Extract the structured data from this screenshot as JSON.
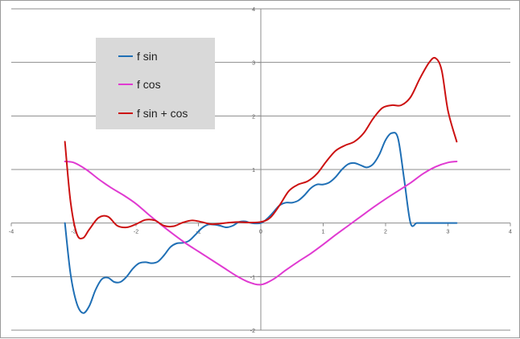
{
  "chart_data": {
    "type": "line",
    "title": "",
    "xlabel": "",
    "ylabel": "",
    "xlim": [
      -4,
      4
    ],
    "ylim": [
      -2,
      4
    ],
    "x_ticks": [
      -4,
      -3,
      -2,
      -1,
      0,
      1,
      2,
      3,
      4
    ],
    "y_ticks": [
      -2,
      -1,
      0,
      1,
      2,
      3,
      4
    ],
    "x_tick_labels": [
      "-4",
      "-3",
      "-2",
      "-1",
      "0",
      "1",
      "2",
      "3",
      "4"
    ],
    "y_tick_labels": [
      "-2",
      "-1",
      "",
      "1",
      "2",
      "3",
      "4"
    ],
    "grid": "horizontal",
    "legend_position": "top-left",
    "series": [
      {
        "name": "f sin",
        "color": "#1f6fb5",
        "x": [
          -3.14,
          -3.05,
          -2.95,
          -2.85,
          -2.75,
          -2.65,
          -2.55,
          -2.45,
          -2.35,
          -2.25,
          -2.15,
          -2.05,
          -1.95,
          -1.85,
          -1.75,
          -1.65,
          -1.55,
          -1.45,
          -1.35,
          -1.25,
          -1.15,
          -1.05,
          -0.95,
          -0.85,
          -0.75,
          -0.65,
          -0.55,
          -0.45,
          -0.35,
          -0.25,
          -0.15,
          0,
          0.1,
          0.2,
          0.3,
          0.4,
          0.5,
          0.6,
          0.7,
          0.8,
          0.9,
          1.0,
          1.1,
          1.2,
          1.3,
          1.4,
          1.5,
          1.6,
          1.7,
          1.8,
          1.9,
          2.0,
          2.1,
          2.2,
          2.3,
          2.4,
          2.5,
          2.6,
          2.7,
          2.8,
          2.9,
          3.0,
          3.14
        ],
        "y": [
          0,
          -0.95,
          -1.5,
          -1.68,
          -1.55,
          -1.25,
          -1.05,
          -1.02,
          -1.1,
          -1.1,
          -1.0,
          -0.85,
          -0.75,
          -0.73,
          -0.75,
          -0.72,
          -0.6,
          -0.45,
          -0.38,
          -0.37,
          -0.33,
          -0.22,
          -0.1,
          -0.03,
          -0.03,
          -0.05,
          -0.08,
          -0.05,
          0.02,
          0.03,
          0.0,
          0,
          0.08,
          0.2,
          0.33,
          0.38,
          0.38,
          0.42,
          0.52,
          0.65,
          0.72,
          0.72,
          0.76,
          0.86,
          1.0,
          1.1,
          1.12,
          1.08,
          1.04,
          1.1,
          1.28,
          1.55,
          1.68,
          1.58,
          0.8,
          0.0,
          0,
          0,
          0,
          0,
          0,
          0,
          0
        ]
      },
      {
        "name": "f cos",
        "color": "#e03ad1",
        "x": [
          -3.14,
          -3.0,
          -2.8,
          -2.6,
          -2.4,
          -2.2,
          -2.0,
          -1.8,
          -1.6,
          -1.4,
          -1.2,
          -1.0,
          -0.8,
          -0.6,
          -0.4,
          -0.2,
          0,
          0.2,
          0.4,
          0.6,
          0.8,
          1.0,
          1.2,
          1.4,
          1.6,
          1.8,
          2.0,
          2.2,
          2.4,
          2.6,
          2.8,
          3.0,
          3.14
        ],
        "y": [
          1.15,
          1.13,
          1.0,
          0.82,
          0.66,
          0.52,
          0.36,
          0.16,
          -0.03,
          -0.21,
          -0.38,
          -0.53,
          -0.68,
          -0.83,
          -0.98,
          -1.1,
          -1.15,
          -1.05,
          -0.88,
          -0.72,
          -0.57,
          -0.4,
          -0.22,
          -0.05,
          0.12,
          0.29,
          0.45,
          0.6,
          0.75,
          0.92,
          1.05,
          1.13,
          1.15
        ]
      },
      {
        "name": "f sin + cos",
        "color": "#cc1111",
        "x": [
          -3.14,
          -3.05,
          -2.95,
          -2.85,
          -2.75,
          -2.6,
          -2.45,
          -2.3,
          -2.15,
          -2.0,
          -1.85,
          -1.7,
          -1.55,
          -1.4,
          -1.25,
          -1.1,
          -0.95,
          -0.8,
          -0.65,
          -0.5,
          -0.35,
          -0.2,
          0,
          0.15,
          0.3,
          0.45,
          0.6,
          0.75,
          0.9,
          1.05,
          1.2,
          1.35,
          1.5,
          1.65,
          1.8,
          1.95,
          2.1,
          2.25,
          2.4,
          2.55,
          2.7,
          2.8,
          2.9,
          3.0,
          3.14
        ],
        "y": [
          1.52,
          0.4,
          -0.2,
          -0.28,
          -0.12,
          0.1,
          0.12,
          -0.05,
          -0.08,
          -0.02,
          0.06,
          0.05,
          -0.05,
          -0.06,
          0.01,
          0.05,
          0.02,
          -0.02,
          -0.01,
          0.01,
          0.02,
          0.01,
          0.02,
          0.1,
          0.33,
          0.6,
          0.72,
          0.78,
          0.92,
          1.15,
          1.35,
          1.45,
          1.52,
          1.68,
          1.95,
          2.15,
          2.2,
          2.2,
          2.35,
          2.7,
          3.0,
          3.08,
          2.85,
          2.1,
          1.52
        ]
      }
    ]
  }
}
